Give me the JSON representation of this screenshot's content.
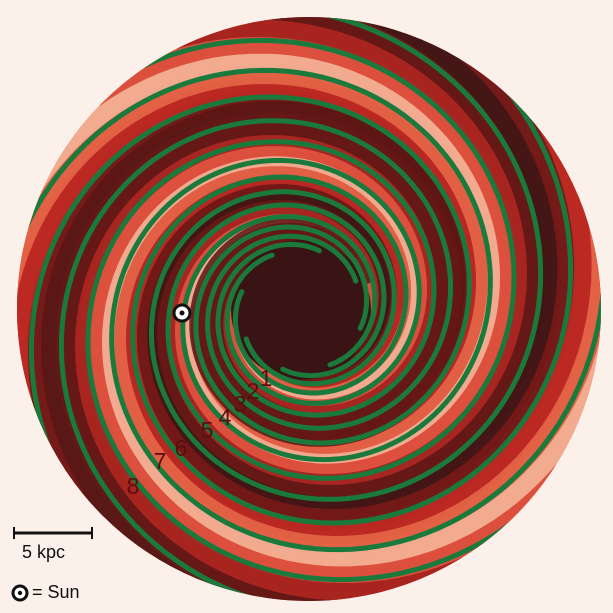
{
  "arm_labels": [
    "1",
    "2",
    "3",
    "4",
    "5",
    "6",
    "7",
    "8"
  ],
  "scale_bar": "5 kpc",
  "legend": "= Sun"
}
